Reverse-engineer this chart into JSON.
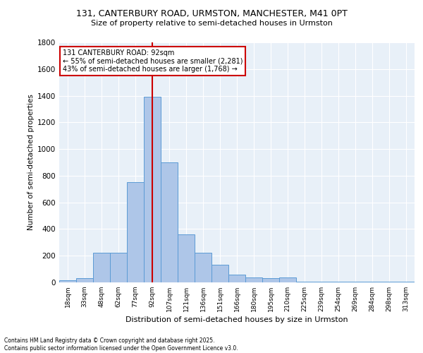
{
  "title_line1": "131, CANTERBURY ROAD, URMSTON, MANCHESTER, M41 0PT",
  "title_line2": "Size of property relative to semi-detached houses in Urmston",
  "categories": [
    "18sqm",
    "33sqm",
    "48sqm",
    "62sqm",
    "77sqm",
    "92sqm",
    "107sqm",
    "121sqm",
    "136sqm",
    "151sqm",
    "166sqm",
    "180sqm",
    "195sqm",
    "210sqm",
    "225sqm",
    "239sqm",
    "254sqm",
    "269sqm",
    "284sqm",
    "298sqm",
    "313sqm"
  ],
  "values": [
    15,
    30,
    220,
    220,
    750,
    1390,
    900,
    360,
    225,
    135,
    60,
    35,
    30,
    35,
    5,
    5,
    5,
    5,
    5,
    5,
    5
  ],
  "bar_color": "#aec6e8",
  "bar_edge_color": "#5b9bd5",
  "vline_x_index": 5,
  "vline_color": "#cc0000",
  "annotation_line1": "131 CANTERBURY ROAD: 92sqm",
  "annotation_line2": "← 55% of semi-detached houses are smaller (2,281)",
  "annotation_line3": "43% of semi-detached houses are larger (1,768) →",
  "annotation_box_color": "#cc0000",
  "ylabel": "Number of semi-detached properties",
  "xlabel": "Distribution of semi-detached houses by size in Urmston",
  "ylim": [
    0,
    1800
  ],
  "yticks": [
    0,
    200,
    400,
    600,
    800,
    1000,
    1200,
    1400,
    1600,
    1800
  ],
  "background_color": "#e8f0f8",
  "grid_color": "#ffffff",
  "footer_line1": "Contains HM Land Registry data © Crown copyright and database right 2025.",
  "footer_line2": "Contains public sector information licensed under the Open Government Licence v3.0."
}
